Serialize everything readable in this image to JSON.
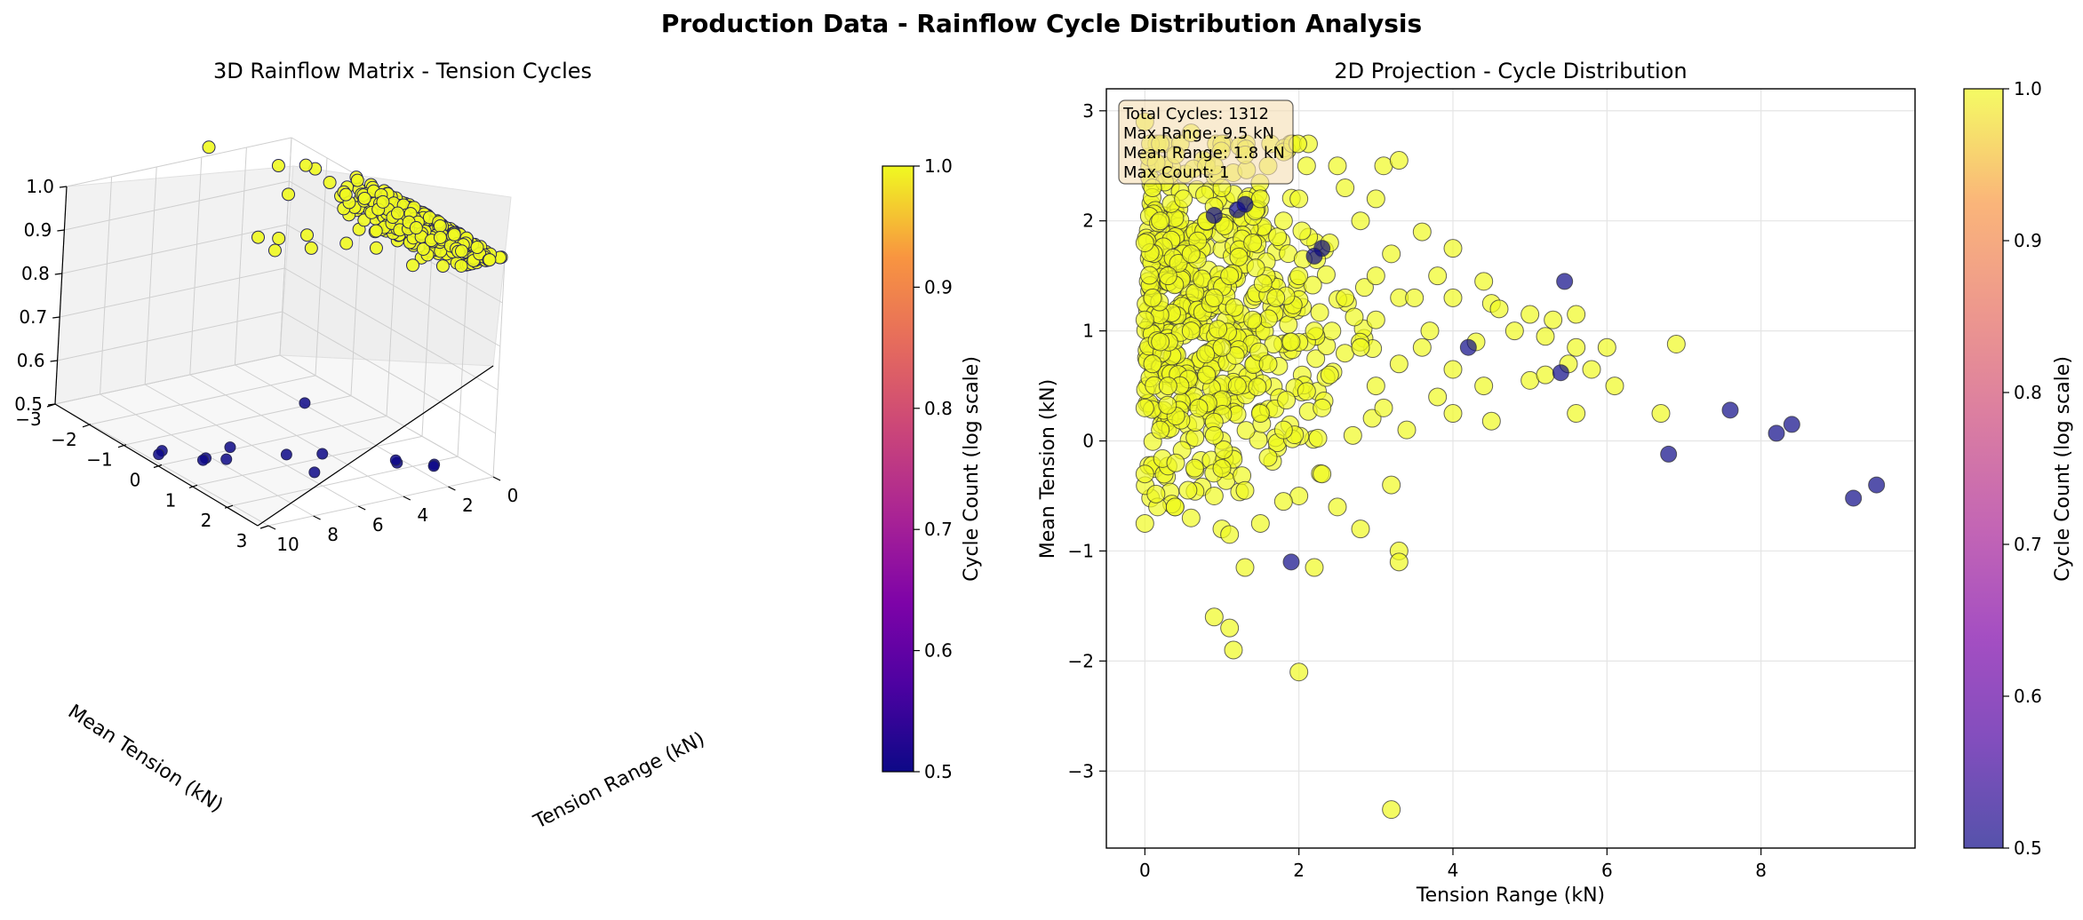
{
  "figure": {
    "suptitle": "Production Data - Rainflow Cycle Distribution Analysis"
  },
  "chart_data": [
    {
      "type": "scatter3d",
      "title": "3D Rainflow Matrix - Tension Cycles",
      "xlabel": "Tension Range (kN)",
      "ylabel": "Mean Tension (kN)",
      "zlabel": "",
      "xlim": [
        0,
        10
      ],
      "ylim": [
        -3,
        3
      ],
      "zlim": [
        0.5,
        1.0
      ],
      "x_ticks": [
        "0",
        "2",
        "4",
        "6",
        "8",
        "10"
      ],
      "y_ticks": [
        "−3",
        "−2",
        "−1",
        "0",
        "1",
        "2",
        "3"
      ],
      "z_ticks": [
        "0.5",
        "0.6",
        "0.7",
        "0.8",
        "0.9",
        "1.0"
      ],
      "grid": true,
      "colormap": "plasma",
      "colorbar": {
        "label": "Cycle Count (log scale)",
        "range": [
          0.5,
          1.0
        ],
        "ticks": [
          "0.5",
          "0.6",
          "0.7",
          "0.8",
          "0.9",
          "1.0"
        ]
      },
      "series": [
        {
          "color_value": 1.0,
          "color": "#f0f921",
          "points": [
            [
              0.2,
              2.6
            ],
            [
              0.5,
              2.4
            ],
            [
              0.4,
              2.2
            ],
            [
              0.7,
              2.0
            ],
            [
              0.3,
              1.9
            ],
            [
              1.0,
              1.8
            ],
            [
              0.2,
              1.6
            ],
            [
              0.6,
              1.4
            ],
            [
              1.2,
              1.2
            ],
            [
              0.4,
              1.0
            ],
            [
              0.8,
              0.8
            ],
            [
              1.5,
              0.6
            ],
            [
              0.3,
              0.5
            ],
            [
              1.0,
              0.3
            ],
            [
              2.0,
              0.1
            ],
            [
              0.5,
              -0.1
            ],
            [
              1.2,
              -0.3
            ],
            [
              2.5,
              0.2
            ],
            [
              1.8,
              1.0
            ],
            [
              2.4,
              1.5
            ],
            [
              3.0,
              0.8
            ],
            [
              3.5,
              1.6
            ],
            [
              4.2,
              1.2
            ],
            [
              5.0,
              0.6
            ],
            [
              5.6,
              1.1
            ],
            [
              6.1,
              0.5
            ],
            [
              6.7,
              0.3
            ],
            [
              6.9,
              0.9
            ],
            [
              1.0,
              -0.8
            ],
            [
              1.3,
              -1.1
            ],
            [
              1.0,
              -1.7
            ],
            [
              1.1,
              -1.9
            ],
            [
              2.0,
              -2.1
            ],
            [
              3.2,
              -3.3
            ],
            [
              3.3,
              -1.0
            ],
            [
              0.1,
              -0.7
            ],
            [
              0.0,
              2.9
            ],
            [
              1.5,
              2.6
            ],
            [
              2.6,
              2.3
            ],
            [
              3.3,
              2.5
            ]
          ]
        },
        {
          "color_value": 0.5,
          "color": "#0d0887",
          "points": [
            [
              9.2,
              -0.5
            ],
            [
              9.5,
              -0.4
            ],
            [
              8.2,
              0.1
            ],
            [
              8.4,
              0.15
            ],
            [
              7.6,
              0.3
            ],
            [
              6.8,
              -0.1
            ],
            [
              5.5,
              1.45
            ],
            [
              5.4,
              0.6
            ],
            [
              4.2,
              0.85
            ],
            [
              1.9,
              -1.1
            ],
            [
              1.2,
              2.1
            ],
            [
              2.3,
              1.75
            ],
            [
              1.3,
              2.15
            ],
            [
              2.2,
              1.65
            ]
          ]
        }
      ]
    },
    {
      "type": "scatter",
      "title": "2D Projection - Cycle Distribution",
      "xlabel": "Tension Range (kN)",
      "ylabel": "Mean Tension (kN)",
      "xlim": [
        -0.5,
        10
      ],
      "ylim": [
        -3.7,
        3.2
      ],
      "x_ticks": [
        0,
        2,
        4,
        6,
        8
      ],
      "y_ticks": [
        -3,
        -2,
        -1,
        0,
        1,
        2,
        3
      ],
      "grid": true,
      "colormap": "plasma",
      "colorbar": {
        "label": "Cycle Count (log scale)",
        "range": [
          0.5,
          1.0
        ],
        "ticks": [
          "0.5",
          "0.6",
          "0.7",
          "0.8",
          "0.9",
          "1.0"
        ]
      },
      "info_box": {
        "lines": [
          "Total Cycles: 1312",
          "Max Range: 9.5 kN",
          "Mean Range: 1.8 kN",
          "Max Count: 1"
        ]
      },
      "series": [
        {
          "color_value": 1.0,
          "color": "#f0f921",
          "points": [
            [
              0.0,
              2.9
            ],
            [
              0.2,
              2.7
            ],
            [
              0.4,
              2.6
            ],
            [
              0.6,
              2.8
            ],
            [
              0.9,
              2.5
            ],
            [
              1.3,
              2.6
            ],
            [
              1.6,
              2.5
            ],
            [
              2.1,
              2.5
            ],
            [
              2.5,
              2.5
            ],
            [
              3.1,
              2.5
            ],
            [
              3.3,
              2.55
            ],
            [
              0.1,
              2.3
            ],
            [
              0.5,
              2.2
            ],
            [
              1.0,
              2.3
            ],
            [
              1.5,
              2.2
            ],
            [
              2.0,
              2.2
            ],
            [
              2.6,
              2.3
            ],
            [
              3.0,
              2.2
            ],
            [
              0.2,
              2.0
            ],
            [
              0.8,
              2.0
            ],
            [
              1.8,
              2.0
            ],
            [
              2.8,
              2.0
            ],
            [
              3.6,
              1.9
            ],
            [
              0.0,
              1.8
            ],
            [
              0.6,
              1.7
            ],
            [
              1.4,
              1.8
            ],
            [
              2.4,
              1.8
            ],
            [
              3.2,
              1.7
            ],
            [
              4.0,
              1.75
            ],
            [
              0.3,
              1.5
            ],
            [
              1.1,
              1.5
            ],
            [
              2.0,
              1.5
            ],
            [
              3.0,
              1.5
            ],
            [
              3.8,
              1.5
            ],
            [
              4.4,
              1.45
            ],
            [
              0.1,
              1.3
            ],
            [
              0.9,
              1.3
            ],
            [
              1.7,
              1.3
            ],
            [
              2.6,
              1.3
            ],
            [
              3.5,
              1.3
            ],
            [
              4.0,
              1.3
            ],
            [
              4.5,
              1.25
            ],
            [
              0.0,
              1.1
            ],
            [
              0.6,
              1.0
            ],
            [
              1.4,
              1.1
            ],
            [
              2.2,
              1.0
            ],
            [
              3.0,
              1.1
            ],
            [
              3.7,
              1.0
            ],
            [
              4.6,
              1.2
            ],
            [
              5.0,
              1.15
            ],
            [
              5.3,
              1.1
            ],
            [
              5.6,
              1.15
            ],
            [
              0.2,
              0.9
            ],
            [
              1.0,
              0.85
            ],
            [
              1.9,
              0.9
            ],
            [
              2.8,
              0.85
            ],
            [
              3.6,
              0.85
            ],
            [
              4.3,
              0.9
            ],
            [
              4.8,
              1.0
            ],
            [
              5.2,
              0.95
            ],
            [
              5.6,
              0.85
            ],
            [
              6.0,
              0.85
            ],
            [
              6.9,
              0.88
            ],
            [
              0.1,
              0.7
            ],
            [
              0.8,
              0.6
            ],
            [
              1.6,
              0.7
            ],
            [
              2.4,
              0.6
            ],
            [
              3.3,
              0.7
            ],
            [
              4.0,
              0.65
            ],
            [
              5.5,
              0.7
            ],
            [
              5.8,
              0.65
            ],
            [
              0.3,
              0.5
            ],
            [
              1.2,
              0.5
            ],
            [
              2.1,
              0.45
            ],
            [
              3.0,
              0.5
            ],
            [
              3.8,
              0.4
            ],
            [
              4.4,
              0.5
            ],
            [
              5.0,
              0.55
            ],
            [
              5.2,
              0.6
            ],
            [
              6.1,
              0.5
            ],
            [
              0.0,
              0.3
            ],
            [
              0.7,
              0.3
            ],
            [
              1.5,
              0.25
            ],
            [
              2.3,
              0.3
            ],
            [
              3.1,
              0.3
            ],
            [
              4.0,
              0.25
            ],
            [
              5.6,
              0.25
            ],
            [
              6.7,
              0.25
            ],
            [
              0.2,
              0.1
            ],
            [
              0.9,
              0.05
            ],
            [
              1.8,
              0.1
            ],
            [
              2.7,
              0.05
            ],
            [
              3.4,
              0.1
            ],
            [
              4.5,
              0.18
            ],
            [
              0.0,
              -0.3
            ],
            [
              0.4,
              -0.2
            ],
            [
              1.0,
              -0.25
            ],
            [
              1.6,
              -0.15
            ],
            [
              2.3,
              -0.3
            ],
            [
              3.2,
              -0.4
            ],
            [
              1.3,
              -0.45
            ],
            [
              2.0,
              -0.5
            ],
            [
              2.5,
              -0.6
            ],
            [
              0.9,
              -0.5
            ],
            [
              1.8,
              -0.55
            ],
            [
              0.6,
              -0.7
            ],
            [
              1.5,
              -0.75
            ],
            [
              0.0,
              -0.75
            ],
            [
              1.0,
              -0.8
            ],
            [
              1.1,
              -0.85
            ],
            [
              2.8,
              -0.8
            ],
            [
              3.3,
              -1.0
            ],
            [
              3.3,
              -1.1
            ],
            [
              1.3,
              -1.15
            ],
            [
              2.2,
              -1.15
            ],
            [
              0.9,
              -1.6
            ],
            [
              1.1,
              -1.7
            ],
            [
              1.15,
              -1.9
            ],
            [
              2.0,
              -2.1
            ],
            [
              3.2,
              -3.35
            ]
          ]
        },
        {
          "color_value": 0.5,
          "color": "#0d0887",
          "points": [
            [
              1.2,
              2.1
            ],
            [
              1.3,
              2.15
            ],
            [
              0.9,
              2.05
            ],
            [
              2.3,
              1.75
            ],
            [
              2.2,
              1.68
            ],
            [
              5.45,
              1.45
            ],
            [
              5.4,
              0.62
            ],
            [
              4.2,
              0.85
            ],
            [
              1.9,
              -1.1
            ],
            [
              6.8,
              -0.12
            ],
            [
              7.6,
              0.28
            ],
            [
              8.2,
              0.07
            ],
            [
              8.4,
              0.15
            ],
            [
              9.2,
              -0.52
            ],
            [
              9.5,
              -0.4
            ]
          ]
        }
      ]
    }
  ]
}
